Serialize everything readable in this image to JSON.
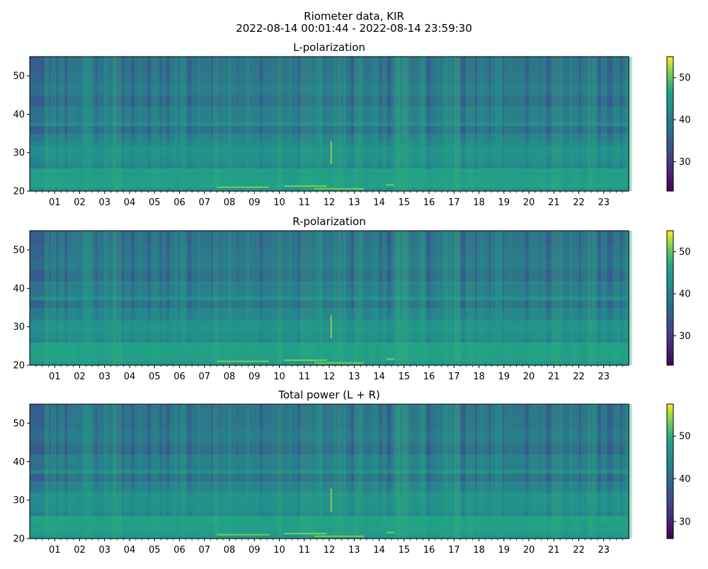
{
  "figure": {
    "title_line1": "Riometer data, KIR",
    "title_line2": "2022-08-14 00:01:44 - 2022-08-14 23:59:30"
  },
  "chart_data": [
    {
      "type": "heatmap",
      "title": "L-polarization",
      "xlabel": "",
      "ylabel": "",
      "x_ticks": [
        "01",
        "02",
        "03",
        "04",
        "05",
        "06",
        "07",
        "08",
        "09",
        "10",
        "11",
        "12",
        "13",
        "14",
        "15",
        "16",
        "17",
        "18",
        "19",
        "20",
        "21",
        "22",
        "23"
      ],
      "x_range_hours": [
        0,
        24
      ],
      "y_ticks": [
        20,
        30,
        40,
        50
      ],
      "ylim": [
        20,
        55
      ],
      "colorbar": {
        "ticks": [
          30,
          40,
          50
        ],
        "range": [
          23,
          55
        ],
        "colormap": "viridis"
      }
    },
    {
      "type": "heatmap",
      "title": "R-polarization",
      "xlabel": "",
      "ylabel": "",
      "x_ticks": [
        "01",
        "02",
        "03",
        "04",
        "05",
        "06",
        "07",
        "08",
        "09",
        "10",
        "11",
        "12",
        "13",
        "14",
        "15",
        "16",
        "17",
        "18",
        "19",
        "20",
        "21",
        "22",
        "23"
      ],
      "x_range_hours": [
        0,
        24
      ],
      "y_ticks": [
        20,
        30,
        40,
        50
      ],
      "ylim": [
        20,
        55
      ],
      "colorbar": {
        "ticks": [
          30,
          40,
          50
        ],
        "range": [
          23,
          55
        ],
        "colormap": "viridis"
      }
    },
    {
      "type": "heatmap",
      "title": "Total power (L + R)",
      "xlabel": "",
      "ylabel": "",
      "x_ticks": [
        "01",
        "02",
        "03",
        "04",
        "05",
        "06",
        "07",
        "08",
        "09",
        "10",
        "11",
        "12",
        "13",
        "14",
        "15",
        "16",
        "17",
        "18",
        "19",
        "20",
        "21",
        "22",
        "23"
      ],
      "x_range_hours": [
        0,
        24
      ],
      "y_ticks": [
        20,
        30,
        40,
        50
      ],
      "ylim": [
        20,
        55
      ],
      "colorbar": {
        "ticks": [
          30,
          40,
          50
        ],
        "range": [
          26,
          57.5
        ],
        "colormap": "viridis"
      }
    }
  ]
}
